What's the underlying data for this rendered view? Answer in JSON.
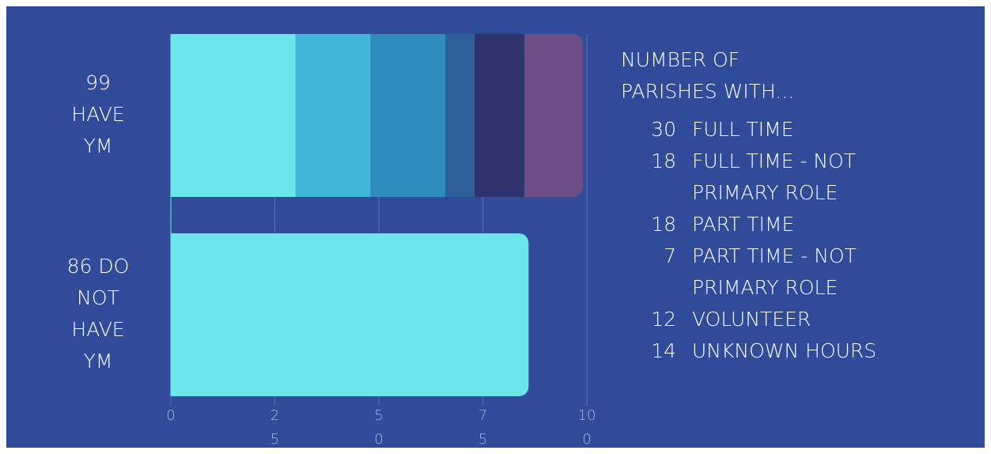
{
  "chart_data": {
    "type": "stacked_bar_horizontal",
    "legend_title": "NUMBER OF PARISHES WITH...",
    "categories": [
      "99 HAVE YM",
      "86 DO NOT HAVE YM"
    ],
    "series": [
      {
        "name": "FULL TIME",
        "color": "#6be5ea",
        "values": [
          30,
          null
        ]
      },
      {
        "name": "FULL TIME - NOT PRIMARY ROLE",
        "color": "#42b6d6",
        "values": [
          18,
          null
        ]
      },
      {
        "name": "PART TIME",
        "color": "#2e8bbb",
        "values": [
          18,
          null
        ]
      },
      {
        "name": "PART TIME - NOT PRIMARY ROLE",
        "color": "#2f5f99",
        "values": [
          7,
          null
        ]
      },
      {
        "name": "VOLUNTEER",
        "color": "#2f336d",
        "values": [
          12,
          null
        ]
      },
      {
        "name": "UNKNOWN HOURS",
        "color": "#6e4e87",
        "values": [
          14,
          null
        ]
      },
      {
        "color": "#6be5ea",
        "values": [
          null,
          86
        ]
      }
    ],
    "xlim": [
      0,
      100
    ],
    "xticks": [
      0,
      25,
      50,
      75,
      100
    ],
    "grid": true,
    "legend": "right"
  }
}
